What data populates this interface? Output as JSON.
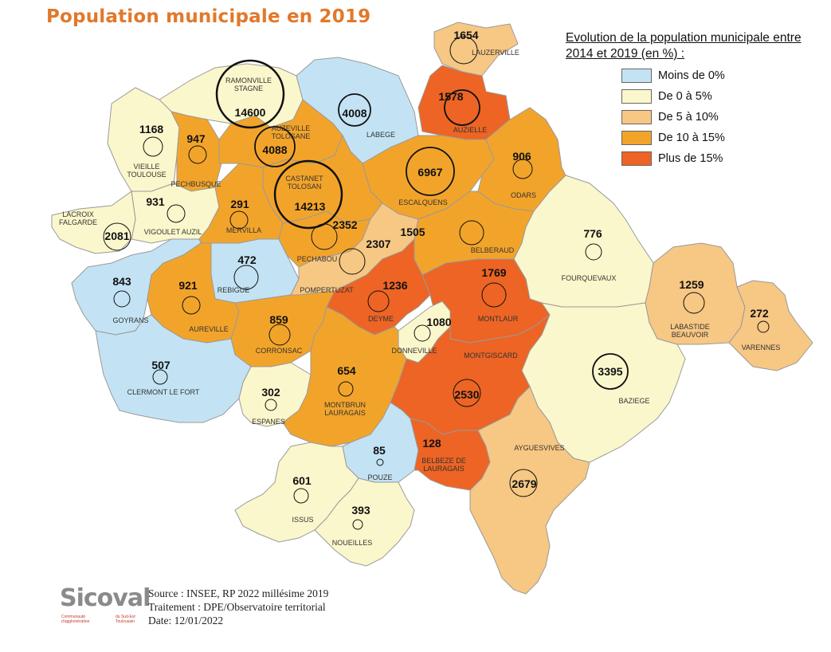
{
  "title": "Population municipale en 2019",
  "legend": {
    "title": "Evolution de la population municipale entre 2014 et 2019 (en %) :",
    "items": [
      {
        "label": "Moins de 0%",
        "color": "#c3e3f4"
      },
      {
        "label": "De 0 à 5%",
        "color": "#fbf7cc"
      },
      {
        "label": "De 5 à 10%",
        "color": "#f7c784"
      },
      {
        "label": "De 10 à 15%",
        "color": "#f2a42a"
      },
      {
        "label": "Plus de 15%",
        "color": "#ed6424"
      }
    ]
  },
  "communes": [
    {
      "id": "lauzerville",
      "name": "LAUZERVILLE",
      "pop": "1654",
      "class": 2
    },
    {
      "id": "ramonville",
      "name": "RAMONVILLE\nSTAGNE",
      "pop": "14600",
      "class": 1
    },
    {
      "id": "labege",
      "name": "LABEGE",
      "pop": "4008",
      "class": 0
    },
    {
      "id": "auzielle",
      "name": "AUZIELLE",
      "pop": "1578",
      "class": 4
    },
    {
      "id": "vieille-toulouse",
      "name": "VIEILLE\nTOULOUSE",
      "pop": "1168",
      "class": 1
    },
    {
      "id": "pechbusque",
      "name": "PECHBUSQUE",
      "pop": "947",
      "class": 3
    },
    {
      "id": "auzeville",
      "name": "AUZEVILLE\nTOLOSANE",
      "pop": "4088",
      "class": 3
    },
    {
      "id": "escalquens",
      "name": "ESCALQUENS",
      "pop": "6967",
      "class": 3
    },
    {
      "id": "odars",
      "name": "ODARS",
      "pop": "906",
      "class": 3
    },
    {
      "id": "castanet",
      "name": "CASTANET\nTOLOSAN",
      "pop": "14213",
      "class": 3
    },
    {
      "id": "vigoulet",
      "name": "VIGOULET AUZIL",
      "pop": "931",
      "class": 1
    },
    {
      "id": "mervilla",
      "name": "MERVILLA",
      "pop": "291",
      "class": 3
    },
    {
      "id": "lacroix",
      "name": "LACROIX\nFALGARDE",
      "pop": "2081",
      "class": 1
    },
    {
      "id": "rebigue",
      "name": "REBIGUE",
      "pop": "472",
      "class": 0
    },
    {
      "id": "pechabou",
      "name": "PECHABOU",
      "pop": "2352",
      "class": 3
    },
    {
      "id": "pompertuzat",
      "name": "POMPERTUZAT",
      "pop": "2307",
      "class": 2
    },
    {
      "id": "belberaud",
      "name": "BELBERAUD",
      "pop": "1505",
      "class": 3
    },
    {
      "id": "fourquevaux",
      "name": "FOURQUEVAUX",
      "pop": "776",
      "class": 1
    },
    {
      "id": "goyrans",
      "name": "GOYRANS",
      "pop": "843",
      "class": 0
    },
    {
      "id": "aureville",
      "name": "AUREVILLE",
      "pop": "921",
      "class": 3
    },
    {
      "id": "deyme",
      "name": "DEYME",
      "pop": "1236",
      "class": 4
    },
    {
      "id": "montlaur",
      "name": "MONTLAUR",
      "pop": "1769",
      "class": 4
    },
    {
      "id": "labastide",
      "name": "LABASTIDE\nBEAUVOIR",
      "pop": "1259",
      "class": 2
    },
    {
      "id": "varennes",
      "name": "VARENNES",
      "pop": "272",
      "class": 2
    },
    {
      "id": "corronsac",
      "name": "CORRONSAC",
      "pop": "859",
      "class": 3
    },
    {
      "id": "donneville",
      "name": "DONNEVILLE",
      "pop": "1080",
      "class": 1
    },
    {
      "id": "montgiscard",
      "name": "MONTGISCARD",
      "pop": "2530",
      "class": 4
    },
    {
      "id": "baziege",
      "name": "BAZIEGE",
      "pop": "3395",
      "class": 1
    },
    {
      "id": "clermont",
      "name": "CLERMONT LE FORT",
      "pop": "507",
      "class": 0
    },
    {
      "id": "espanes",
      "name": "ESPANES",
      "pop": "302",
      "class": 1
    },
    {
      "id": "montbrun",
      "name": "MONTBRUN\nLAURAGAIS",
      "pop": "654",
      "class": 3
    },
    {
      "id": "pouze",
      "name": "POUZE",
      "pop": "85",
      "class": 0
    },
    {
      "id": "belbeze",
      "name": "BELBEZE DE\nLAURAGAIS",
      "pop": "128",
      "class": 4
    },
    {
      "id": "ayguesvives",
      "name": "AYGUESVIVES",
      "pop": "2679",
      "class": 2
    },
    {
      "id": "issus",
      "name": "ISSUS",
      "pop": "601",
      "class": 1
    },
    {
      "id": "noueilles",
      "name": "NOUEILLES",
      "pop": "393",
      "class": 1
    }
  ],
  "logo": {
    "text": "Sicoval",
    "sub_left": "Communauté d'agglomération",
    "sub_right": "du Sud-Est Toulousain"
  },
  "source": {
    "line1": "Source : INSEE, RP 2022  millésime 2019",
    "line2": "Traitement : DPE/Observatoire territorial",
    "line3": "Date: 12/01/2022"
  }
}
